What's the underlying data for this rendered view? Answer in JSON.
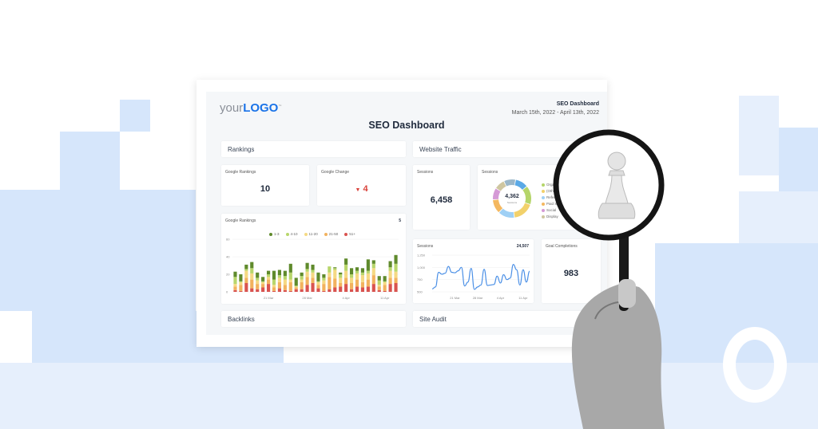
{
  "header": {
    "logo_your": "your",
    "logo_logo": "LOGO",
    "logo_tm": "™",
    "title": "SEO Dashboard",
    "right_title": "SEO Dashboard",
    "date_range": "March 15th, 2022 - April 13th, 2022"
  },
  "sections": {
    "rankings": "Rankings",
    "website_traffic": "Website Traffic",
    "backlinks": "Backlinks",
    "site_audit": "Site Audit"
  },
  "widgets": {
    "google_rankings": {
      "label": "Google Rankings",
      "value": "10"
    },
    "google_change": {
      "label": "Google Change",
      "value": "4",
      "direction": "down",
      "color": "#d9413a"
    },
    "sessions": {
      "label": "Sessions",
      "value": "6,458"
    },
    "sessions_donut": {
      "label": "Sessions",
      "center_value": "4,362",
      "center_label": "Sessions"
    },
    "goal_completions": {
      "label": "Goal Completions",
      "value": "983"
    }
  },
  "chart_data": [
    {
      "type": "bar",
      "stacked": true,
      "title": "Google Rankings",
      "corner_value": "5",
      "ylim": [
        0,
        60
      ],
      "yticks": [
        "0",
        "20",
        "40",
        "60"
      ],
      "xtick_labels": [
        "21 Mar",
        "28 Mar",
        "4 Apr",
        "11 Apr"
      ],
      "xtick_index": [
        6,
        13,
        20,
        27
      ],
      "series": [
        {
          "name": "51+",
          "color": "#d9534f",
          "values": [
            2,
            1,
            10,
            4,
            3,
            5,
            9,
            1,
            4,
            2,
            1,
            3,
            3,
            8,
            10,
            4,
            1,
            3,
            5,
            6,
            9,
            3,
            6,
            5,
            6,
            9,
            2,
            1,
            9,
            10
          ]
        },
        {
          "name": "21-50",
          "color": "#f2b25e",
          "values": [
            4,
            7,
            6,
            10,
            6,
            4,
            5,
            4,
            7,
            6,
            10,
            2,
            8,
            9,
            6,
            4,
            8,
            14,
            10,
            4,
            7,
            7,
            8,
            6,
            8,
            10,
            4,
            7,
            7,
            6
          ]
        },
        {
          "name": "11-20",
          "color": "#f5d983",
          "values": [
            3,
            3,
            8,
            7,
            4,
            2,
            3,
            3,
            5,
            6,
            3,
            1,
            3,
            6,
            6,
            3,
            4,
            5,
            10,
            6,
            8,
            6,
            7,
            8,
            7,
            8,
            2,
            3,
            8,
            7
          ]
        },
        {
          "name": "4-10",
          "color": "#b8d66b",
          "values": [
            8,
            1,
            2,
            6,
            3,
            1,
            3,
            6,
            3,
            4,
            8,
            1,
            4,
            3,
            3,
            1,
            3,
            7,
            2,
            4,
            7,
            4,
            3,
            3,
            3,
            5,
            5,
            1,
            4,
            9
          ]
        },
        {
          "name": "1-3",
          "color": "#5f8a2c",
          "values": [
            6,
            8,
            5,
            7,
            6,
            5,
            4,
            10,
            6,
            6,
            10,
            9,
            4,
            7,
            6,
            10,
            4,
            0,
            1,
            2,
            7,
            7,
            4,
            5,
            13,
            4,
            5,
            6,
            7,
            10
          ]
        }
      ]
    },
    {
      "type": "line",
      "title": "Sessions",
      "corner_value": "24,507",
      "ylim": [
        500,
        1250
      ],
      "yticks": [
        "500",
        "750",
        "1,000",
        "1,250"
      ],
      "xtick_labels": [
        "21 Mar",
        "28 Mar",
        "4 Apr",
        "11 Apr"
      ],
      "xtick_index": [
        7,
        14,
        21,
        28
      ],
      "color": "#4a8fe6",
      "values": [
        560,
        600,
        900,
        860,
        880,
        1020,
        900,
        890,
        930,
        1000,
        620,
        700,
        980,
        550,
        600,
        640,
        960,
        630,
        640,
        650,
        820,
        680,
        850,
        750,
        780,
        1060,
        950,
        640,
        950,
        700,
        920
      ]
    },
    {
      "type": "pie",
      "donut": true,
      "title": "Sessions",
      "slices": [
        {
          "name": "Organic Search",
          "color": "#b5d56a",
          "value": 16
        },
        {
          "name": "(Other)",
          "color": "#f2d16b",
          "value": 18
        },
        {
          "name": "Referral",
          "color": "#9fd0f5",
          "value": 14
        },
        {
          "name": "Paid Search",
          "color": "#f4b860",
          "value": 12
        },
        {
          "name": "Social",
          "color": "#d59ad6",
          "value": 10
        },
        {
          "name": "Display",
          "color": "#cfc6a0",
          "value": 9
        },
        {
          "name": "",
          "color": "#9bb7c9",
          "value": 10
        },
        {
          "name": "",
          "color": "#5aa9e6",
          "value": 11
        }
      ]
    }
  ],
  "colors": {
    "background_blocks": "#d6e6fb",
    "logo_blue": "#1a73e8",
    "logo_gray": "#8a8f98"
  }
}
